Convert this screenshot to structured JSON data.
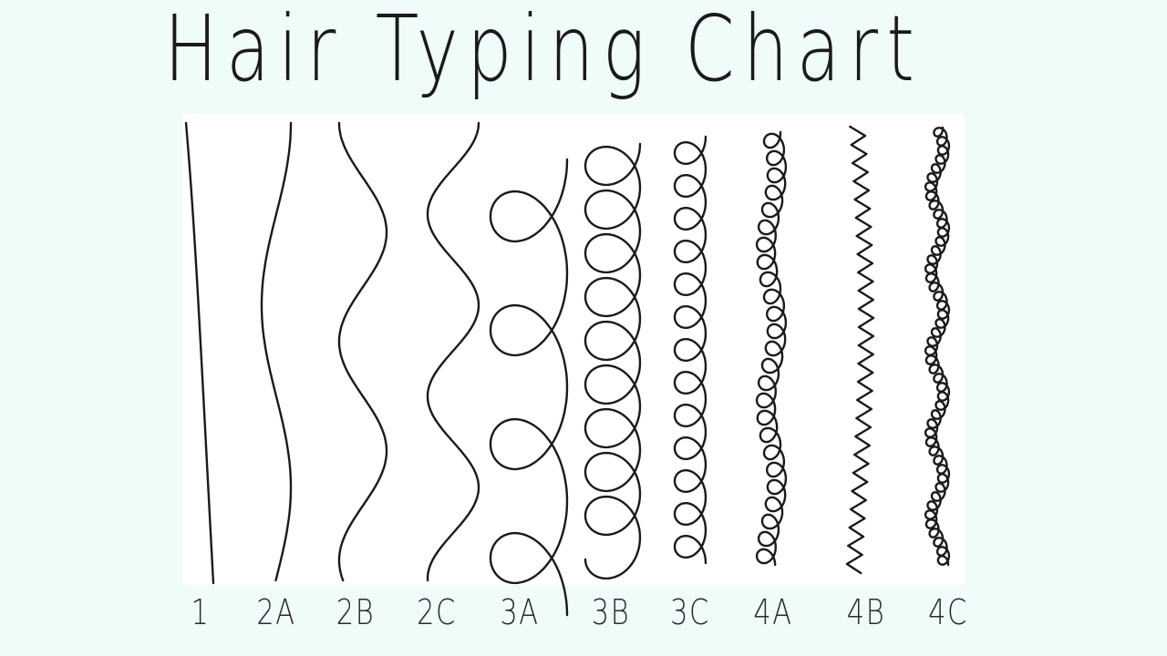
{
  "title": "Hair Typing Chart",
  "types": [
    {
      "label": "1",
      "name": "hair-type-1"
    },
    {
      "label": "2A",
      "name": "hair-type-2a"
    },
    {
      "label": "2B",
      "name": "hair-type-2b"
    },
    {
      "label": "2C",
      "name": "hair-type-2c"
    },
    {
      "label": "3A",
      "name": "hair-type-3a"
    },
    {
      "label": "3B",
      "name": "hair-type-3b"
    },
    {
      "label": "3C",
      "name": "hair-type-3c"
    },
    {
      "label": "4A",
      "name": "hair-type-4a"
    },
    {
      "label": "4B",
      "name": "hair-type-4b"
    },
    {
      "label": "4C",
      "name": "hair-type-4c"
    }
  ],
  "colors": {
    "background": "#effcfa",
    "panel": "#ffffff",
    "stroke": "#1a1a1a"
  }
}
